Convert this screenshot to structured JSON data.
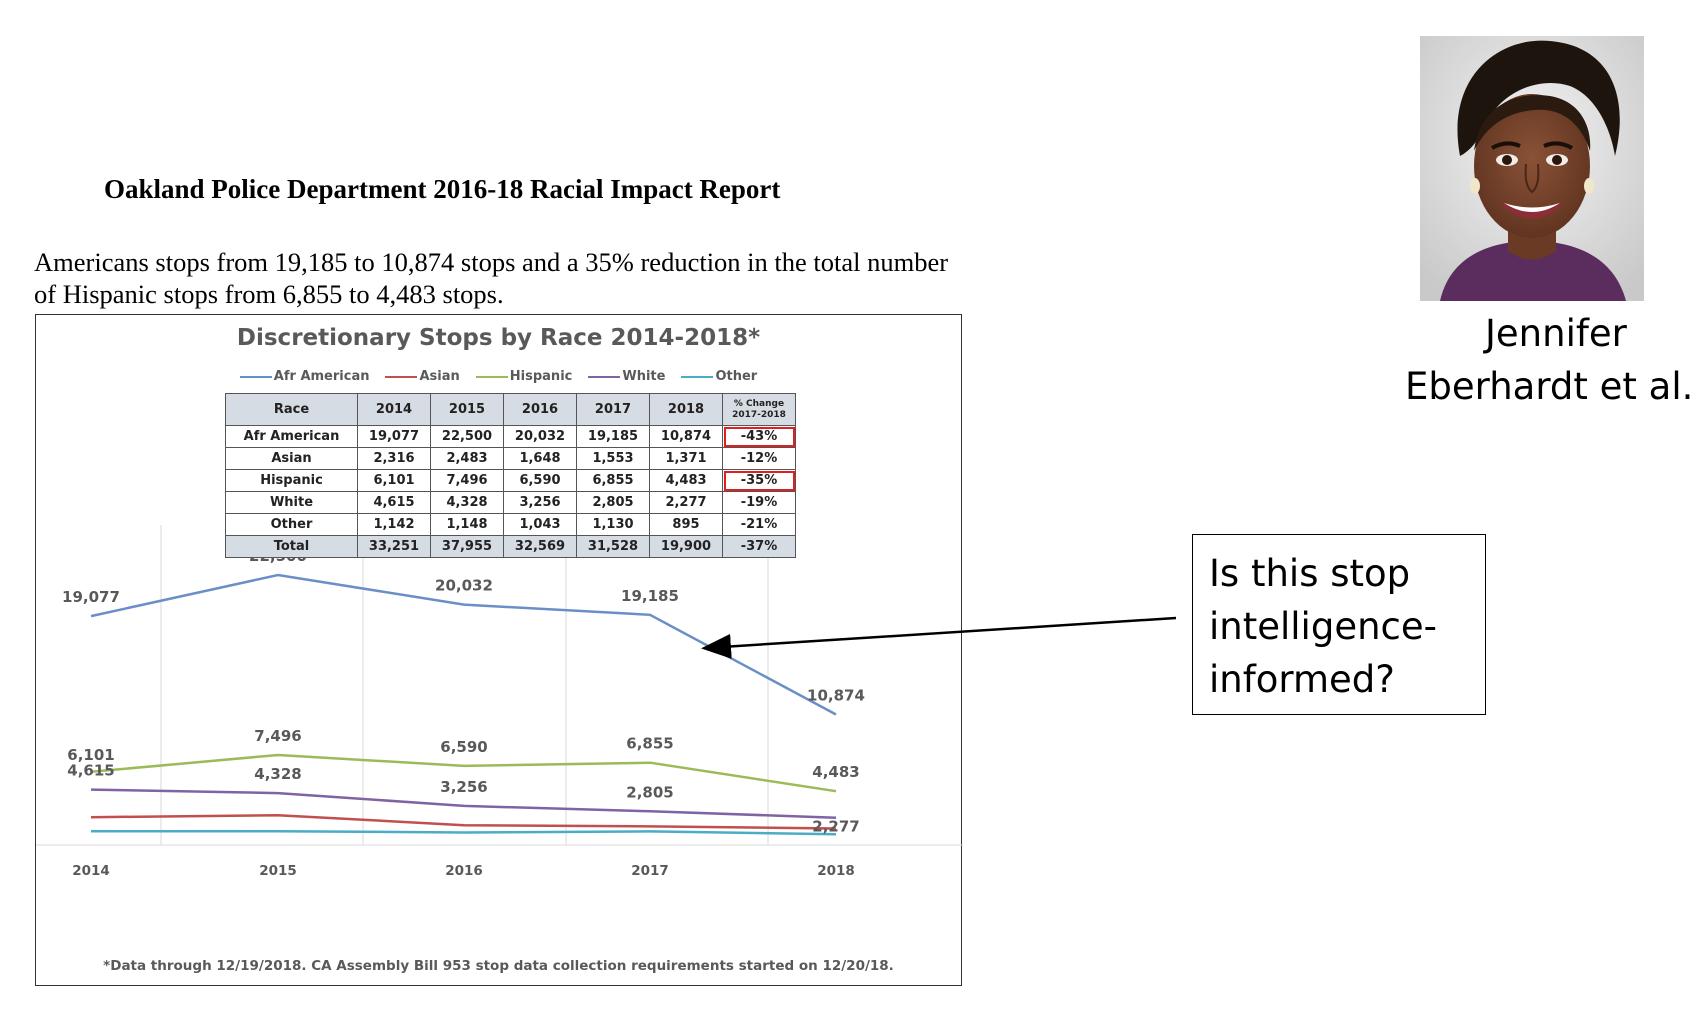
{
  "report": {
    "title": "Oakland Police Department 2016-18 Racial Impact Report",
    "text_line1": "Americans stops from 19,185 to 10,874 stops and a 35% reduction in the total number",
    "text_line2": "of Hispanic stops from 6,855 to 4,483 stops."
  },
  "chart_data": {
    "type": "line",
    "title": "Discretionary Stops by Race 2014-2018*",
    "x": [
      "2014",
      "2015",
      "2016",
      "2017",
      "2018"
    ],
    "series": [
      {
        "name": "Afr American",
        "color": "#6a8fc7",
        "values": [
          19077,
          22500,
          20032,
          19185,
          10874
        ],
        "labels": [
          "19,077",
          "22,500",
          "20,032",
          "19,185",
          "10,874"
        ]
      },
      {
        "name": "Asian",
        "color": "#c0504d",
        "values": [
          2316,
          2483,
          1648,
          1553,
          1371
        ]
      },
      {
        "name": "Hispanic",
        "color": "#9bbb59",
        "values": [
          6101,
          7496,
          6590,
          6855,
          4483
        ],
        "labels": [
          "6,101",
          "7,496",
          "6,590",
          "6,855",
          "4,483"
        ]
      },
      {
        "name": "White",
        "color": "#8064a2",
        "values": [
          4615,
          4328,
          3256,
          2805,
          2277
        ],
        "labels": [
          "4,615",
          "4,328",
          "3,256",
          "2,805",
          "2,277"
        ]
      },
      {
        "name": "Other",
        "color": "#4bacc6",
        "values": [
          1142,
          1148,
          1043,
          1130,
          895
        ]
      }
    ],
    "ylim": [
      0,
      26000
    ],
    "legend_position": "top",
    "grid": "vertical",
    "footnote": "*Data through 12/19/2018. CA Assembly Bill 953 stop data collection requirements started on 12/20/18."
  },
  "table": {
    "headers": [
      "Race",
      "2014",
      "2015",
      "2016",
      "2017",
      "2018"
    ],
    "pct_header_line1": "% Change",
    "pct_header_line2": "2017-2018",
    "rows": [
      [
        "Afr American",
        "19,077",
        "22,500",
        "20,032",
        "19,185",
        "10,874",
        "-43%"
      ],
      [
        "Asian",
        "2,316",
        "2,483",
        "1,648",
        "1,553",
        "1,371",
        "-12%"
      ],
      [
        "Hispanic",
        "6,101",
        "7,496",
        "6,590",
        "6,855",
        "4,483",
        "-35%"
      ],
      [
        "White",
        "4,615",
        "4,328",
        "3,256",
        "2,805",
        "2,277",
        "-19%"
      ],
      [
        "Other",
        "1,142",
        "1,148",
        "1,043",
        "1,130",
        "895",
        "-21%"
      ],
      [
        "Total",
        "33,251",
        "37,955",
        "32,569",
        "31,528",
        "19,900",
        "-37%"
      ]
    ]
  },
  "person": {
    "name_line1": "Jennifer",
    "name_line2": "Eberhardt et al."
  },
  "callout": {
    "line1": "Is this stop",
    "line2": "intelligence-",
    "line3": "informed?"
  }
}
